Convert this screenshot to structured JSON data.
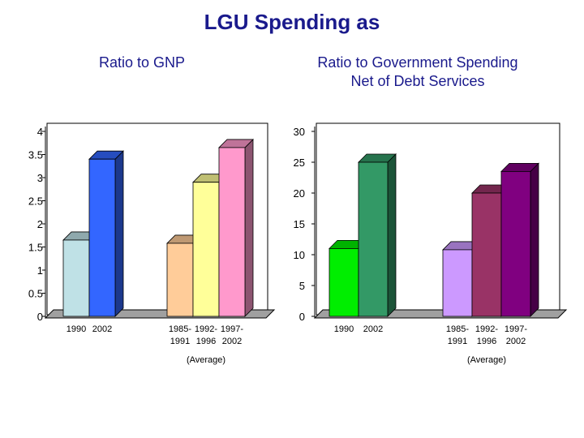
{
  "title": "LGU Spending as",
  "chart_data": [
    {
      "type": "bar",
      "title": "Ratio to GNP",
      "ylim": [
        0,
        4
      ],
      "yticks": [
        "0",
        "0.5",
        "1",
        "1.5",
        "2",
        "2.5",
        "3",
        "3.5",
        "4"
      ],
      "groups": [
        {
          "bars": [
            {
              "label": "1990",
              "value": 1.65,
              "color": "#bfe1e6"
            },
            {
              "label": "2002",
              "value": 3.4,
              "color": "#3366ff"
            }
          ]
        },
        {
          "bars": [
            {
              "label": "1985-\n1991",
              "value": 1.58,
              "color": "#ffcc99"
            },
            {
              "label": "1992-\n1996",
              "value": 2.9,
              "color": "#ffff99"
            },
            {
              "label": "1997-\n2002",
              "value": 3.65,
              "color": "#ff99cc"
            }
          ],
          "note": "(Average)"
        }
      ]
    },
    {
      "type": "bar",
      "title": "Ratio to Government Spending\nNet of Debt Services",
      "ylim": [
        0,
        30
      ],
      "yticks": [
        "0",
        "5",
        "10",
        "15",
        "20",
        "25",
        "30"
      ],
      "groups": [
        {
          "bars": [
            {
              "label": "1990",
              "value": 11.0,
              "color": "#00ee00"
            },
            {
              "label": "2002",
              "value": 25.0,
              "color": "#339966"
            }
          ]
        },
        {
          "bars": [
            {
              "label": "1985-\n1991",
              "value": 10.8,
              "color": "#cc99ff"
            },
            {
              "label": "1992-\n1996",
              "value": 20.0,
              "color": "#993366"
            },
            {
              "label": "1997-\n2002",
              "value": 23.5,
              "color": "#800080"
            }
          ],
          "note": "(Average)"
        }
      ]
    }
  ]
}
